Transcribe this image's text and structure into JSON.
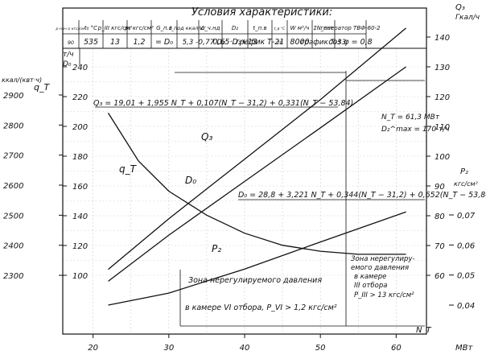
{
  "header": {
    "title": "Условия характеристики:",
    "columns": [
      {
        "top": "p нач о кгс/см²",
        "value": "90"
      },
      {
        "top": "t₀ °C",
        "value": "535"
      },
      {
        "top": "p_III кгс/см²",
        "value": "13"
      },
      {
        "top": "p₂ кгс/см²",
        "value": "1,2"
      },
      {
        "top": "G_п.в",
        "value": "= D₀"
      },
      {
        "top": "i_под ккал/кг",
        "value": "5,3"
      },
      {
        "top": "Δ_ч.нд",
        "value": "-0,77 D₂"
      },
      {
        "top": "D₂",
        "value": "0,65·D₂+13"
      },
      {
        "top": "t_п.в",
        "value": "график Т-21"
      },
      {
        "top": "t_в °C",
        "value": "20"
      },
      {
        "top": "W м³/ч",
        "value": "8000"
      },
      {
        "top": "ΣN_пот",
        "value": "график Т-33"
      },
      {
        "top": "генератор ТВФ-60-2",
        "value": "cos φ = 0,8"
      }
    ]
  },
  "axes": {
    "d0": {
      "label": "D₀",
      "unit": "т/ч",
      "ticks": [
        "240",
        "220",
        "200",
        "180",
        "160",
        "140",
        "120",
        "100"
      ]
    },
    "qt": {
      "label": "q_T",
      "unit": "ккал/(квт·ч)",
      "ticks": [
        "2900",
        "2800",
        "2700",
        "2600",
        "2500",
        "2400",
        "2300"
      ]
    },
    "q3": {
      "label": "Q₃",
      "unit": "Гкал/ч",
      "ticks": [
        "140",
        "130",
        "120",
        "110",
        "100",
        "90",
        "80",
        "70",
        "60"
      ]
    },
    "p2": {
      "label": "P₂",
      "unit": "кгс/см²",
      "ticks": [
        "0,07",
        "0,06",
        "0,05",
        "0,04"
      ]
    },
    "x": {
      "unit": "МВт",
      "ticks": [
        "20",
        "30",
        "40",
        "50",
        "60"
      ],
      "end_label": "N_T"
    }
  },
  "chart_data": {
    "type": "line",
    "x_unit": "МВт",
    "xlim": [
      16,
      64
    ],
    "series": [
      {
        "name": "D₀",
        "axis": "D₀, т/ч",
        "x": [
          22,
          30,
          40,
          50,
          61.3
        ],
        "y": [
          96,
          127,
          163,
          199,
          240
        ]
      },
      {
        "name": "Q₃",
        "axis": "Q₃, Гкал/ч",
        "x": [
          22,
          30,
          40,
          50,
          61.3
        ],
        "y": [
          62,
          79,
          99,
          119,
          143
        ]
      },
      {
        "name": "q_T",
        "axis": "q_T, ккал/(квт·ч)",
        "x": [
          22,
          26,
          30,
          35,
          40,
          45,
          50,
          55,
          61.3
        ],
        "y": [
          2840,
          2680,
          2580,
          2500,
          2440,
          2400,
          2380,
          2370,
          2370
        ]
      },
      {
        "name": "P₂",
        "axis": "P₂, кгс/см²",
        "x": [
          22,
          30,
          40,
          50,
          61.3
        ],
        "y": [
          0.04,
          0.044,
          0.052,
          0.061,
          0.071
        ]
      }
    ],
    "annotations": {
      "formula_q3": "Q₃ = 19,01 + 1,955 N_T + 0,107(N_T − 31,2) + 0,331(N_T − 53,84)",
      "formula_d0": "D₀ = 28,8 + 3,221 N_T + 0,344(N_T − 31,2) + 0,652(N_T − 53,84)",
      "max_point_1": "N_T = 61,3 МВт",
      "max_point_2": "D₂^max = 170 т/ч",
      "zone_left_1": "Зона нерегулируемого давления",
      "zone_left_2": "в камере VI отбора, P_VI > 1,2 кгс/см²",
      "zone_right_1": "Зона нерегулиру-",
      "zone_right_2": "емого давления",
      "zone_right_3": "в камере",
      "zone_right_4": "III отбора",
      "zone_right_5": "P_III > 13 кгс/см²"
    }
  }
}
